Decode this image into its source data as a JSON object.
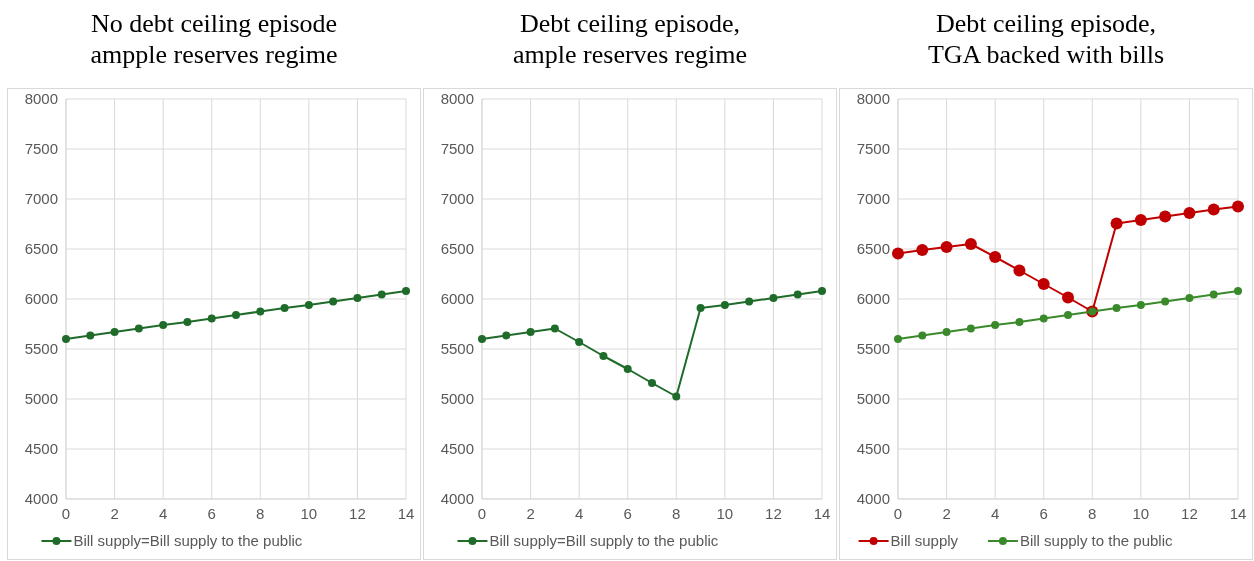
{
  "chart_data": [
    {
      "type": "line",
      "title": "No debt ceiling episode ampple reserves regime",
      "x": [
        0,
        1,
        2,
        3,
        4,
        5,
        6,
        7,
        8,
        9,
        10,
        11,
        12,
        13,
        14
      ],
      "xlim": [
        0,
        14
      ],
      "xticks": [
        0,
        2,
        4,
        6,
        8,
        10,
        12,
        14
      ],
      "ylim": [
        4000,
        8000
      ],
      "yticks": [
        4000,
        4500,
        5000,
        5500,
        6000,
        6500,
        7000,
        7500,
        8000
      ],
      "grid": true,
      "legend": "bottom",
      "marker": "circle",
      "line_style": "solid",
      "series": [
        {
          "name": "Bill supply=Bill supply to the public",
          "color": "#1e6b2a",
          "values": [
            5600,
            5635,
            5670,
            5705,
            5740,
            5770,
            5805,
            5840,
            5875,
            5910,
            5940,
            5975,
            6010,
            6045,
            6080
          ]
        }
      ]
    },
    {
      "type": "line",
      "title": "Debt ceiling episode, ample reserves regime",
      "x": [
        0,
        1,
        2,
        3,
        4,
        5,
        6,
        7,
        8,
        9,
        10,
        11,
        12,
        13,
        14
      ],
      "xlim": [
        0,
        14
      ],
      "xticks": [
        0,
        2,
        4,
        6,
        8,
        10,
        12,
        14
      ],
      "ylim": [
        4000,
        8000
      ],
      "yticks": [
        4000,
        4500,
        5000,
        5500,
        6000,
        6500,
        7000,
        7500,
        8000
      ],
      "grid": true,
      "legend": "bottom",
      "marker": "circle",
      "line_style": "solid",
      "series": [
        {
          "name": "Bill supply=Bill supply to the public",
          "color": "#1e6b2a",
          "values": [
            5600,
            5635,
            5670,
            5705,
            5570,
            5430,
            5300,
            5160,
            5025,
            5910,
            5940,
            5975,
            6010,
            6045,
            6080
          ]
        }
      ]
    },
    {
      "type": "line",
      "title": "Debt ceiling episode, TGA backed with bills",
      "x": [
        0,
        1,
        2,
        3,
        4,
        5,
        6,
        7,
        8,
        9,
        10,
        11,
        12,
        13,
        14
      ],
      "xlim": [
        0,
        14
      ],
      "xticks": [
        0,
        2,
        4,
        6,
        8,
        10,
        12,
        14
      ],
      "ylim": [
        4000,
        8000
      ],
      "yticks": [
        4000,
        4500,
        5000,
        5500,
        6000,
        6500,
        7000,
        7500,
        8000
      ],
      "grid": true,
      "legend": "bottom",
      "marker": "circle",
      "line_style": "solid",
      "series": [
        {
          "name": "Bill supply",
          "color": "#c00000",
          "values": [
            6455,
            6490,
            6520,
            6550,
            6420,
            6285,
            6150,
            6015,
            5875,
            6755,
            6790,
            6825,
            6860,
            6895,
            6925
          ]
        },
        {
          "name": "Bill supply to the public",
          "color": "#3a8a2c",
          "values": [
            5600,
            5635,
            5670,
            5705,
            5740,
            5770,
            5805,
            5840,
            5875,
            5910,
            5940,
            5975,
            6010,
            6045,
            6080
          ]
        }
      ]
    }
  ]
}
